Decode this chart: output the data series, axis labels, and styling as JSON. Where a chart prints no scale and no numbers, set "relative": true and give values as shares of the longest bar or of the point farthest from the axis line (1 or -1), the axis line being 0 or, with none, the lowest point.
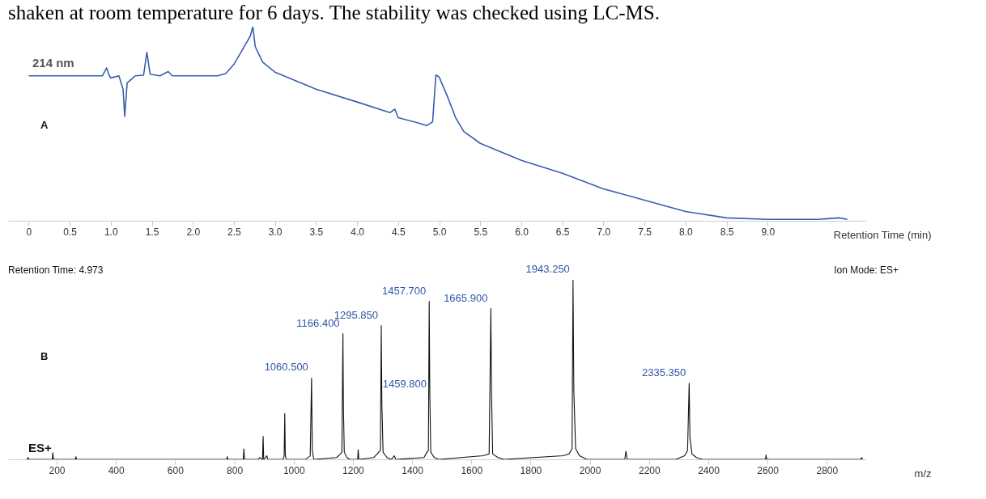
{
  "chart_data": [
    {
      "type": "line",
      "title": "shaken at room temperature for 6 days. The stability was checked using LC-MS.",
      "relative": true,
      "xlabel": "Retention Time (min)",
      "xlim": [
        -0.25,
        10.2
      ],
      "xticks": [
        0,
        {
          "value": 0.5,
          "label": "0.5"
        },
        {
          "value": 1,
          "label": "1.0"
        },
        {
          "value": 1.5,
          "label": "1.5"
        },
        {
          "value": 2,
          "label": "2.0"
        },
        {
          "value": 2.5,
          "label": "2.5"
        },
        {
          "value": 3,
          "label": "3.0"
        },
        {
          "value": 3.5,
          "label": "3.5"
        },
        {
          "value": 4,
          "label": "4.0"
        },
        {
          "value": 4.5,
          "label": "4.5"
        },
        {
          "value": 5,
          "label": "5.0"
        },
        {
          "value": 5.5,
          "label": "5.5"
        },
        {
          "value": 6,
          "label": "6.0"
        },
        {
          "value": 6.5,
          "label": "6.5"
        },
        {
          "value": 7,
          "label": "7.0"
        },
        {
          "value": 7.5,
          "label": "7.5"
        },
        {
          "value": 8,
          "label": "8.0"
        },
        {
          "value": 8.5,
          "label": "8.5"
        },
        {
          "value": 9,
          "label": "9.0"
        }
      ],
      "annotations": [
        "214 nm",
        "A"
      ],
      "x": [
        0,
        0.9,
        0.95,
        0.98,
        1.0,
        1.1,
        1.15,
        1.17,
        1.2,
        1.3,
        1.4,
        1.44,
        1.48,
        1.6,
        1.7,
        1.75,
        2.3,
        2.4,
        2.5,
        2.6,
        2.7,
        2.73,
        2.76,
        2.85,
        3.0,
        3.5,
        4.0,
        4.4,
        4.46,
        4.5,
        4.7,
        4.85,
        4.92,
        4.96,
        5.0,
        5.1,
        5.2,
        5.3,
        5.5,
        6.0,
        6.5,
        7.0,
        7.5,
        8.0,
        8.5,
        9.0,
        9.6,
        9.87,
        9.97
      ],
      "series": [
        {
          "color": "#3a5fae",
          "values": [
            0.747,
            0.747,
            0.788,
            0.75,
            0.736,
            0.747,
            0.678,
            0.538,
            0.71,
            0.747,
            0.75,
            0.868,
            0.755,
            0.747,
            0.769,
            0.747,
            0.747,
            0.758,
            0.806,
            0.879,
            0.952,
            1,
            0.897,
            0.817,
            0.766,
            0.678,
            0.612,
            0.557,
            0.575,
            0.531,
            0.509,
            0.491,
            0.51,
            0.751,
            0.74,
            0.641,
            0.531,
            0.46,
            0.399,
            0.311,
            0.245,
            0.165,
            0.106,
            0.048,
            0.015,
            0.007,
            0.007,
            0.015,
            0.007
          ]
        }
      ]
    },
    {
      "type": "line",
      "relative": true,
      "xlabel": "m/z",
      "xlim": [
        36,
        2933
      ],
      "xticks": [
        200,
        400,
        600,
        800,
        1000,
        1200,
        1400,
        1600,
        1800,
        2000,
        2200,
        2400,
        2600,
        2800
      ],
      "annotations": [
        "Retention Time:  4.973",
        "Ion Mode: ES+",
        "B",
        "ES+",
        {
          "text": "1060.500",
          "x": 1060.5,
          "y": 0.453
        },
        {
          "text": "1166.400",
          "x": 1166.4,
          "y": 0.7
        },
        {
          "text": "1295.850",
          "x": 1295.85,
          "y": 0.745
        },
        {
          "text": "1457.700",
          "x": 1457.7,
          "y": 0.88
        },
        {
          "text": "1459.800",
          "x": 1459.8,
          "y": 0.36
        },
        {
          "text": "1665.900",
          "x": 1665.9,
          "y": 0.84
        },
        {
          "text": "1943.250",
          "x": 1943.25,
          "y": 1
        },
        {
          "text": "2335.350",
          "x": 2335.35,
          "y": 0.424
        }
      ],
      "x": [
        100,
        103,
        106,
        185,
        187,
        189,
        263,
        265,
        267,
        774,
        776,
        778,
        830,
        832,
        834,
        880,
        885,
        890,
        895,
        897,
        899,
        910,
        912,
        965,
        968,
        970,
        972,
        975,
        1040,
        1050,
        1056,
        1060.5,
        1063,
        1068,
        1145,
        1155,
        1163,
        1166.4,
        1168,
        1171,
        1180,
        1190,
        1216,
        1218,
        1220,
        1270,
        1285,
        1293,
        1295.85,
        1298,
        1302,
        1315,
        1330,
        1340,
        1345,
        1440,
        1450,
        1455,
        1457.7,
        1459.8,
        1463,
        1475,
        1490,
        1640,
        1660,
        1665.9,
        1668,
        1672,
        1690,
        1710,
        1910,
        1930,
        1940,
        1943.25,
        1946,
        1952,
        1965,
        1990,
        2118,
        2122,
        2126,
        2290,
        2320,
        2330,
        2335.35,
        2338,
        2345,
        2360,
        2380,
        2593,
        2595,
        2597,
        2915,
        2918,
        2920
      ],
      "series": [
        {
          "color": "#111111",
          "values": [
            0,
            0.01,
            0,
            0,
            0.037,
            0,
            0,
            0.015,
            0,
            0,
            0.015,
            0,
            0,
            0.058,
            0,
            0,
            0.01,
            0.005,
            0,
            0.128,
            0,
            0.02,
            0,
            0,
            0.02,
            0.255,
            0.02,
            0,
            0,
            0.012,
            0.02,
            0.453,
            0.05,
            0,
            0.01,
            0.025,
            0.04,
            0.7,
            0.3,
            0.04,
            0.01,
            0,
            0,
            0.054,
            0,
            0.01,
            0.035,
            0.05,
            0.745,
            0.3,
            0.04,
            0.01,
            0,
            0.02,
            0,
            0.01,
            0.04,
            0.05,
            0.88,
            0.36,
            0.04,
            0.01,
            0,
            0.02,
            0.03,
            0.84,
            0.38,
            0.03,
            0.01,
            0,
            0.02,
            0.03,
            0.06,
            1,
            0.38,
            0.06,
            0.02,
            0,
            0,
            0.045,
            0,
            0,
            0.02,
            0.05,
            0.424,
            0.12,
            0.03,
            0.01,
            0,
            0,
            0.025,
            0,
            0,
            0.01,
            0
          ]
        }
      ]
    }
  ]
}
